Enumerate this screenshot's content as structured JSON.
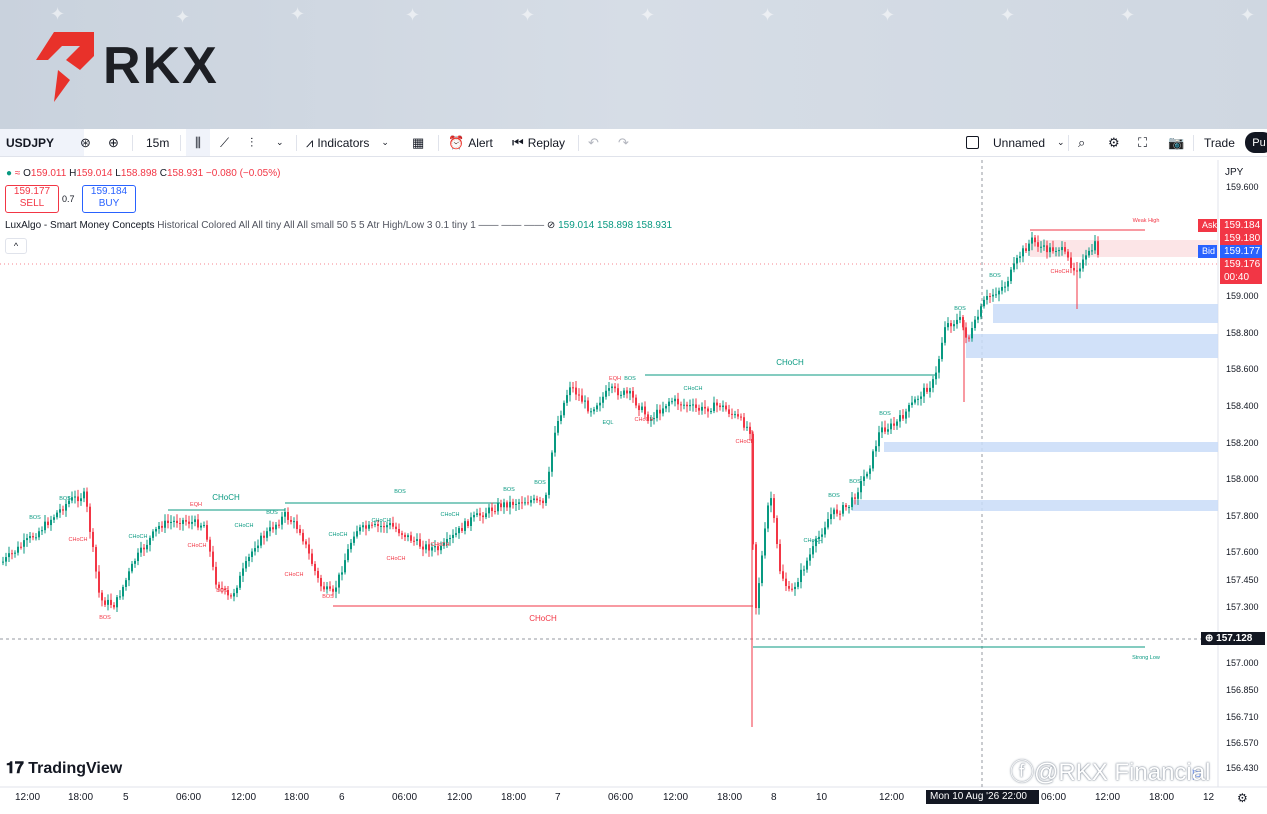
{
  "brand": {
    "name": "RKX",
    "watermark": "@RKX Financial",
    "accent": "#e8312a"
  },
  "toolbar": {
    "symbol": "USDJPY",
    "interval": "15m",
    "indicators_label": "Indicators",
    "alert_label": "Alert",
    "replay_label": "Replay",
    "layout_name": "Unnamed",
    "trade_label": "Trade",
    "publish_label": "Pu"
  },
  "legend": {
    "open_label": "O",
    "open": "159.011",
    "high_label": "H",
    "high": "159.014",
    "low_label": "L",
    "low": "158.898",
    "close_label": "C",
    "close": "158.931",
    "change": "−0.080 (−0.05%)",
    "sell_price": "159.177",
    "sell_label": "SELL",
    "buy_price": "159.184",
    "buy_label": "BUY",
    "spread": "0.7",
    "indicator_name": "LuxAlgo - Smart Money Concepts",
    "indicator_params": "Historical Colored All All tiny All All small 50 5 5 Atr High/Low 3 0.1 tiny 1 —— —— ——",
    "indicator_v1": "159.014",
    "indicator_v2": "158.898",
    "indicator_v3": "158.931"
  },
  "price_axis": {
    "currency": "JPY",
    "labels": [
      "159.600",
      "159.000",
      "158.800",
      "158.600",
      "158.400",
      "158.200",
      "158.000",
      "157.800",
      "157.600",
      "157.450",
      "157.300",
      "157.000",
      "156.850",
      "156.710",
      "156.570",
      "156.430"
    ],
    "ask_label": "Ask",
    "ask": "159.184",
    "mid": "159.180",
    "bid_label": "Bid",
    "bid": "159.177",
    "last": "159.176",
    "countdown": "00:40",
    "crosshair": "157.128"
  },
  "time_axis": {
    "labels": [
      "12:00",
      "18:00",
      "5",
      "06:00",
      "12:00",
      "18:00",
      "6",
      "06:00",
      "12:00",
      "18:00",
      "7",
      "06:00",
      "12:00",
      "18:00",
      "8",
      "10",
      "12:00",
      "06:00",
      "12:00",
      "18:00",
      "12"
    ],
    "crosshair": "Mon 10 Aug '26   22:00"
  },
  "tradingview_label": "TradingView",
  "chart_data": {
    "type": "candlestick",
    "annotations": [
      "BOS",
      "CHoCH",
      "EQH",
      "EQL",
      "Weak High",
      "Strong Low"
    ],
    "price_min": 156.43,
    "price_max": 159.6
  },
  "colors": {
    "up": "#089981",
    "down": "#f23645",
    "zone": "#c9dcf8",
    "premium": "#fbe1e3"
  }
}
